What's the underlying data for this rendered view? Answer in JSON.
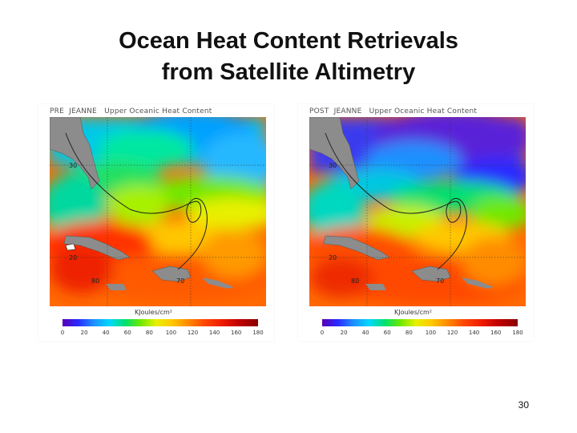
{
  "slide": {
    "title_line1": "Ocean Heat Content Retrievals",
    "title_line2": "from Satellite Altimetry",
    "page_number": "30"
  },
  "panels": [
    {
      "header": "PRE  JEANNE   Upper Oceanic Heat Content",
      "lat_labels": [
        "30",
        "20"
      ],
      "lon_labels": [
        "80",
        "70"
      ],
      "units": "KJoules/cm²",
      "colorbar_ticks": [
        "0",
        "20",
        "40",
        "60",
        "80",
        "100",
        "120",
        "140",
        "160",
        "180"
      ]
    },
    {
      "header": "POST  JEANNE   Upper Oceanic Heat Content",
      "lat_labels": [
        "30",
        "20"
      ],
      "lon_labels": [
        "80",
        "70"
      ],
      "units": "KJoules/cm²",
      "colorbar_ticks": [
        "0",
        "20",
        "40",
        "60",
        "80",
        "100",
        "120",
        "140",
        "160",
        "180"
      ]
    }
  ],
  "colors": {
    "land": "#8c8c8c",
    "high_heat": "#e02000",
    "low_heat": "#5a20d8"
  }
}
